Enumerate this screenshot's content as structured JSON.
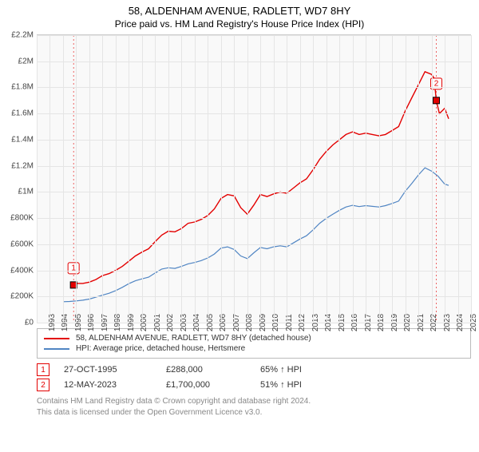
{
  "title": "58, ALDENHAM AVENUE, RADLETT, WD7 8HY",
  "subtitle": "Price paid vs. HM Land Registry's House Price Index (HPI)",
  "chart": {
    "type": "line",
    "background_color": "#f9f9f9",
    "grid_color": "#e5e5e5",
    "axis_color": "#444444",
    "label_fontsize": 10,
    "title_fontsize": 13,
    "subtitle_fontsize": 12,
    "x_domain": [
      1993,
      2026
    ],
    "y_domain": [
      0,
      2200000
    ],
    "y_ticks": [
      0,
      200000,
      400000,
      600000,
      800000,
      1000000,
      1200000,
      1400000,
      1600000,
      1800000,
      2000000,
      2200000
    ],
    "y_tick_labels": [
      "£0",
      "£200K",
      "£400K",
      "£600K",
      "£800K",
      "£1M",
      "£1.2M",
      "£1.4M",
      "£1.6M",
      "£1.8M",
      "£2M",
      "£2.2M"
    ],
    "x_ticks": [
      1993,
      1994,
      1995,
      1996,
      1997,
      1998,
      1999,
      2000,
      2001,
      2002,
      2003,
      2004,
      2005,
      2006,
      2007,
      2008,
      2009,
      2010,
      2011,
      2012,
      2013,
      2014,
      2015,
      2016,
      2017,
      2018,
      2019,
      2020,
      2021,
      2022,
      2023,
      2024,
      2025,
      2026
    ],
    "series": [
      {
        "name": "property",
        "label": "58, ALDENHAM AVENUE, RADLETT, WD7 8HY (detached house)",
        "color": "#e30000",
        "line_width": 1.4,
        "points": [
          [
            1995.8,
            288000
          ],
          [
            1996,
            300000
          ],
          [
            1996.5,
            300000
          ],
          [
            1997,
            310000
          ],
          [
            1997.5,
            330000
          ],
          [
            1998,
            360000
          ],
          [
            1998.5,
            375000
          ],
          [
            1999,
            400000
          ],
          [
            1999.5,
            430000
          ],
          [
            2000,
            470000
          ],
          [
            2000.5,
            510000
          ],
          [
            2001,
            540000
          ],
          [
            2001.5,
            565000
          ],
          [
            2002,
            620000
          ],
          [
            2002.5,
            670000
          ],
          [
            2003,
            700000
          ],
          [
            2003.5,
            695000
          ],
          [
            2004,
            720000
          ],
          [
            2004.5,
            760000
          ],
          [
            2005,
            770000
          ],
          [
            2005.5,
            790000
          ],
          [
            2006,
            820000
          ],
          [
            2006.5,
            870000
          ],
          [
            2007,
            950000
          ],
          [
            2007.5,
            980000
          ],
          [
            2008,
            970000
          ],
          [
            2008.5,
            880000
          ],
          [
            2009,
            830000
          ],
          [
            2009.5,
            900000
          ],
          [
            2010,
            980000
          ],
          [
            2010.5,
            965000
          ],
          [
            2011,
            985000
          ],
          [
            2011.5,
            1000000
          ],
          [
            2012,
            990000
          ],
          [
            2012.5,
            1030000
          ],
          [
            2013,
            1070000
          ],
          [
            2013.5,
            1100000
          ],
          [
            2014,
            1170000
          ],
          [
            2014.5,
            1250000
          ],
          [
            2015,
            1310000
          ],
          [
            2015.5,
            1360000
          ],
          [
            2016,
            1400000
          ],
          [
            2016.5,
            1440000
          ],
          [
            2017,
            1460000
          ],
          [
            2017.5,
            1440000
          ],
          [
            2018,
            1450000
          ],
          [
            2018.5,
            1440000
          ],
          [
            2019,
            1430000
          ],
          [
            2019.5,
            1440000
          ],
          [
            2020,
            1470000
          ],
          [
            2020.5,
            1500000
          ],
          [
            2021,
            1620000
          ],
          [
            2021.5,
            1720000
          ],
          [
            2022,
            1820000
          ],
          [
            2022.5,
            1920000
          ],
          [
            2023,
            1900000
          ],
          [
            2023.2,
            1870000
          ],
          [
            2023.36,
            1700000
          ],
          [
            2023.6,
            1600000
          ],
          [
            2024,
            1640000
          ],
          [
            2024.3,
            1560000
          ]
        ]
      },
      {
        "name": "hpi",
        "label": "HPI: Average price, detached house, Hertsmere",
        "color": "#5085c3",
        "line_width": 1.2,
        "points": [
          [
            1995,
            160000
          ],
          [
            1995.5,
            162000
          ],
          [
            1996,
            166000
          ],
          [
            1996.5,
            172000
          ],
          [
            1997,
            180000
          ],
          [
            1997.5,
            195000
          ],
          [
            1998,
            210000
          ],
          [
            1998.5,
            225000
          ],
          [
            1999,
            245000
          ],
          [
            1999.5,
            270000
          ],
          [
            2000,
            298000
          ],
          [
            2000.5,
            320000
          ],
          [
            2001,
            335000
          ],
          [
            2001.5,
            348000
          ],
          [
            2002,
            380000
          ],
          [
            2002.5,
            410000
          ],
          [
            2003,
            420000
          ],
          [
            2003.5,
            415000
          ],
          [
            2004,
            430000
          ],
          [
            2004.5,
            450000
          ],
          [
            2005,
            460000
          ],
          [
            2005.5,
            475000
          ],
          [
            2006,
            495000
          ],
          [
            2006.5,
            525000
          ],
          [
            2007,
            570000
          ],
          [
            2007.5,
            580000
          ],
          [
            2008,
            560000
          ],
          [
            2008.5,
            510000
          ],
          [
            2009,
            490000
          ],
          [
            2009.5,
            535000
          ],
          [
            2010,
            575000
          ],
          [
            2010.5,
            565000
          ],
          [
            2011,
            580000
          ],
          [
            2011.5,
            588000
          ],
          [
            2012,
            580000
          ],
          [
            2012.5,
            610000
          ],
          [
            2013,
            640000
          ],
          [
            2013.5,
            665000
          ],
          [
            2014,
            710000
          ],
          [
            2014.5,
            760000
          ],
          [
            2015,
            798000
          ],
          [
            2015.5,
            830000
          ],
          [
            2016,
            860000
          ],
          [
            2016.5,
            885000
          ],
          [
            2017,
            898000
          ],
          [
            2017.5,
            888000
          ],
          [
            2018,
            895000
          ],
          [
            2018.5,
            890000
          ],
          [
            2019,
            885000
          ],
          [
            2019.5,
            895000
          ],
          [
            2020,
            912000
          ],
          [
            2020.5,
            930000
          ],
          [
            2021,
            1005000
          ],
          [
            2021.5,
            1065000
          ],
          [
            2022,
            1130000
          ],
          [
            2022.5,
            1185000
          ],
          [
            2023,
            1160000
          ],
          [
            2023.5,
            1120000
          ],
          [
            2024,
            1060000
          ],
          [
            2024.3,
            1050000
          ]
        ]
      }
    ],
    "markers": [
      {
        "n": "1",
        "x": 1995.8,
        "y": 288000,
        "color": "#e30000"
      },
      {
        "n": "2",
        "x": 2023.36,
        "y": 1700000,
        "color": "#e30000"
      }
    ]
  },
  "legend": {
    "items": [
      {
        "color": "#e30000",
        "label": "58, ALDENHAM AVENUE, RADLETT, WD7 8HY (detached house)"
      },
      {
        "color": "#5085c3",
        "label": "HPI: Average price, detached house, Hertsmere"
      }
    ]
  },
  "data_points": [
    {
      "n": "1",
      "color": "#e30000",
      "date": "27-OCT-1995",
      "price": "£288,000",
      "hpi": "65% ↑ HPI"
    },
    {
      "n": "2",
      "color": "#e30000",
      "date": "12-MAY-2023",
      "price": "£1,700,000",
      "hpi": "51% ↑ HPI"
    }
  ],
  "footnote_line1": "Contains HM Land Registry data © Crown copyright and database right 2024.",
  "footnote_line2": "This data is licensed under the Open Government Licence v3.0."
}
